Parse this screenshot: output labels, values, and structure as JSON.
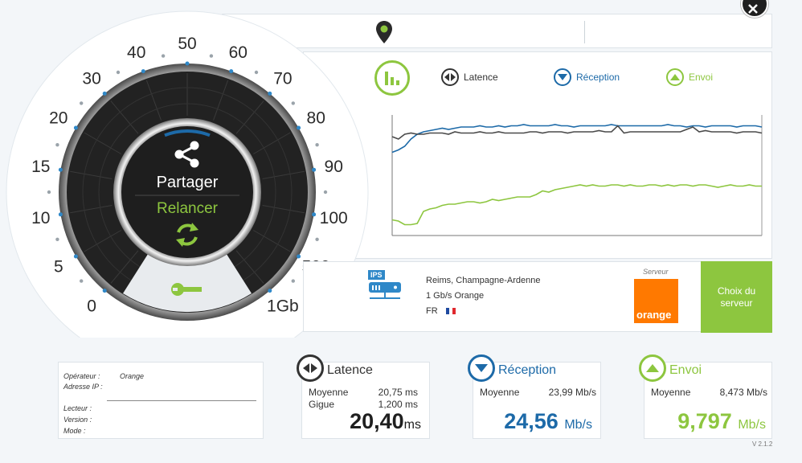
{
  "gauge": {
    "ticks": [
      "0",
      "5",
      "10",
      "15",
      "20",
      "30",
      "40",
      "50",
      "60",
      "70",
      "80",
      "90",
      "100",
      "500",
      "1Gb"
    ],
    "share_label": "Partager",
    "restart_label": "Relancer",
    "icons": {
      "share": "share-icon",
      "restart": "refresh-icon",
      "settings": "wrench-icon"
    },
    "progress_fraction": 0.12
  },
  "chart_legend": {
    "latency": "Latence",
    "download": "Réception",
    "upload": "Envoi"
  },
  "chart_data": {
    "type": "line",
    "title": "",
    "xlabel": "",
    "ylabel": "",
    "ylim": [
      0,
      100
    ],
    "x": [
      0,
      1,
      2,
      3,
      4,
      5,
      6,
      7,
      8,
      9,
      10,
      11,
      12,
      13,
      14,
      15,
      16,
      17,
      18,
      19,
      20,
      21,
      22,
      23,
      24,
      25,
      26,
      27,
      28,
      29,
      30,
      31,
      32,
      33,
      34,
      35,
      36,
      37,
      38,
      39,
      40,
      41,
      42,
      43,
      44,
      45,
      46,
      47,
      48,
      49,
      50,
      51,
      52,
      53,
      54,
      55,
      56,
      57,
      58,
      59
    ],
    "series": [
      {
        "name": "Réception",
        "color": "#1d6aa8",
        "values": [
          69,
          71,
          74,
          80,
          84,
          86,
          87,
          88,
          89,
          88,
          89,
          90,
          90,
          90,
          91,
          90,
          90,
          91,
          90,
          91,
          91,
          92,
          91,
          91,
          91,
          91,
          92,
          91,
          91,
          90,
          91,
          91,
          91,
          91,
          91,
          92,
          91,
          91,
          91,
          91,
          91,
          91,
          91,
          91,
          92,
          91,
          91,
          90,
          91,
          91,
          90,
          91,
          91,
          91,
          91,
          90,
          91,
          91,
          91,
          90
        ]
      },
      {
        "name": "Latence",
        "color": "#4a4a4a",
        "values": [
          82,
          80,
          84,
          85,
          84,
          84,
          85,
          85,
          85,
          84,
          86,
          85,
          85,
          85,
          86,
          85,
          85,
          86,
          85,
          85,
          85,
          85,
          86,
          86,
          85,
          86,
          86,
          86,
          85,
          86,
          86,
          86,
          86,
          87,
          86,
          86,
          91,
          85,
          86,
          86,
          86,
          86,
          86,
          86,
          86,
          86,
          86,
          88,
          90,
          86,
          87,
          86,
          86,
          86,
          86,
          85,
          86,
          86,
          86,
          85
        ]
      },
      {
        "name": "Envoi",
        "color": "#8dc63f",
        "values": [
          13,
          12,
          9,
          9,
          10,
          20,
          22,
          23,
          25,
          26,
          26,
          27,
          28,
          28,
          27,
          28,
          30,
          29,
          30,
          31,
          32,
          32,
          32,
          34,
          37,
          36,
          38,
          39,
          40,
          41,
          42,
          41,
          42,
          41,
          41,
          42,
          42,
          41,
          42,
          41,
          41,
          42,
          42,
          41,
          42,
          41,
          42,
          42,
          41,
          42,
          42,
          41,
          40,
          41,
          42,
          41,
          41,
          42,
          41,
          41
        ]
      }
    ]
  },
  "server_info": {
    "location": "Reims, Champagne-Ardenne",
    "connection": "1 Gb/s Orange",
    "country": "FR",
    "ips_badge": "IPS",
    "server_label": "Serveur",
    "operator_logo_text": "orange",
    "choose_server_label": "Choix du serveur"
  },
  "user_info": {
    "operator_label": "Opérateur :",
    "operator_value": "Orange",
    "ip_label": "Adresse IP :",
    "player_label": "Lecteur :",
    "version_label": "Version :",
    "mode_label": "Mode :"
  },
  "stats": {
    "latency": {
      "title": "Latence",
      "avg_label": "Moyenne",
      "avg_value": "20,75 ms",
      "jitter_label": "Gigue",
      "jitter_value": "1,200 ms",
      "big_value": "20,40",
      "big_unit": "ms"
    },
    "download": {
      "title": "Réception",
      "avg_label": "Moyenne",
      "avg_value": "23,99 Mb/s",
      "big_value": "24,56",
      "big_unit": "Mb/s"
    },
    "upload": {
      "title": "Envoi",
      "avg_label": "Moyenne",
      "avg_value": "8,473 Mb/s",
      "big_value": "9,797",
      "big_unit": "Mb/s"
    }
  },
  "version": "V 2.1.2",
  "colors": {
    "green": "#8dc63f",
    "blue": "#1d6aa8",
    "dark": "#1f1f1f",
    "orange": "#ff7900"
  }
}
